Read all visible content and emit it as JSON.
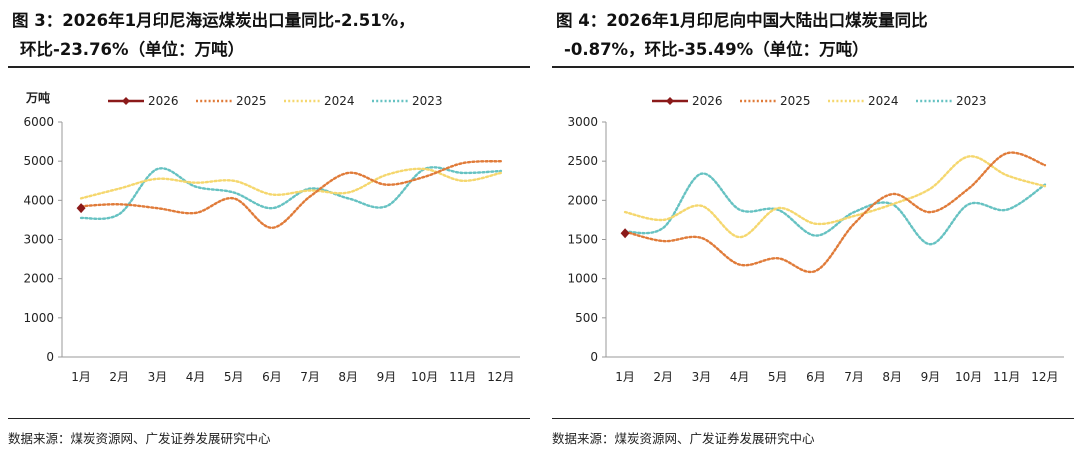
{
  "chart_data": [
    {
      "type": "line",
      "title_line1": "图 3：2026年1月印尼海运煤炭出口量同比-2.51%，",
      "title_line2": "环比-23.76%（单位：万吨）",
      "ylabel": "万吨",
      "ylim": [
        0,
        6000
      ],
      "yticks": [
        "0",
        "1000",
        "2000",
        "3000",
        "4000",
        "5000",
        "6000"
      ],
      "categories": [
        "1月",
        "2月",
        "3月",
        "4月",
        "5月",
        "6月",
        "7月",
        "8月",
        "9月",
        "10月",
        "11月",
        "12月"
      ],
      "series": [
        {
          "name": "2026",
          "color": "#8b1a1a",
          "style": "solid-marker",
          "values": [
            3800,
            null,
            null,
            null,
            null,
            null,
            null,
            null,
            null,
            null,
            null,
            null
          ]
        },
        {
          "name": "2025",
          "color": "#e07b39",
          "style": "dotted",
          "values": [
            3850,
            3900,
            3800,
            3680,
            4050,
            3300,
            4100,
            4700,
            4400,
            4600,
            4950,
            5000
          ]
        },
        {
          "name": "2024",
          "color": "#f5d76e",
          "style": "dotted",
          "values": [
            4050,
            4300,
            4550,
            4450,
            4500,
            4150,
            4250,
            4200,
            4650,
            4800,
            4500,
            4700
          ]
        },
        {
          "name": "2023",
          "color": "#66c2c2",
          "style": "dotted",
          "values": [
            3550,
            3650,
            4800,
            4350,
            4200,
            3800,
            4300,
            4050,
            3850,
            4800,
            4700,
            4750
          ]
        }
      ],
      "source": "数据来源：煤炭资源网、广发证券发展研究中心"
    },
    {
      "type": "line",
      "title_line1": "图 4：2026年1月印尼向中国大陆出口煤炭量同比",
      "title_line2": "-0.87%，环比-35.49%（单位：万吨）",
      "ylabel": "",
      "ylim": [
        0,
        3000
      ],
      "yticks": [
        "0",
        "500",
        "1000",
        "1500",
        "2000",
        "2500",
        "3000"
      ],
      "categories": [
        "1月",
        "2月",
        "3月",
        "4月",
        "5月",
        "6月",
        "7月",
        "8月",
        "9月",
        "10月",
        "11月",
        "12月"
      ],
      "series": [
        {
          "name": "2026",
          "color": "#8b1a1a",
          "style": "solid-marker",
          "values": [
            1580,
            null,
            null,
            null,
            null,
            null,
            null,
            null,
            null,
            null,
            null,
            null
          ]
        },
        {
          "name": "2025",
          "color": "#e07b39",
          "style": "dotted",
          "values": [
            1600,
            1480,
            1520,
            1180,
            1260,
            1100,
            1700,
            2080,
            1850,
            2150,
            2600,
            2450
          ]
        },
        {
          "name": "2024",
          "color": "#f5d76e",
          "style": "dotted",
          "values": [
            1850,
            1750,
            1930,
            1530,
            1900,
            1700,
            1800,
            1950,
            2150,
            2560,
            2320,
            2180
          ]
        },
        {
          "name": "2023",
          "color": "#66c2c2",
          "style": "dotted",
          "values": [
            1600,
            1650,
            2340,
            1880,
            1880,
            1550,
            1850,
            1950,
            1440,
            1950,
            1880,
            2200
          ]
        }
      ],
      "source": "数据来源：煤炭资源网、广发证券发展研究中心"
    }
  ]
}
